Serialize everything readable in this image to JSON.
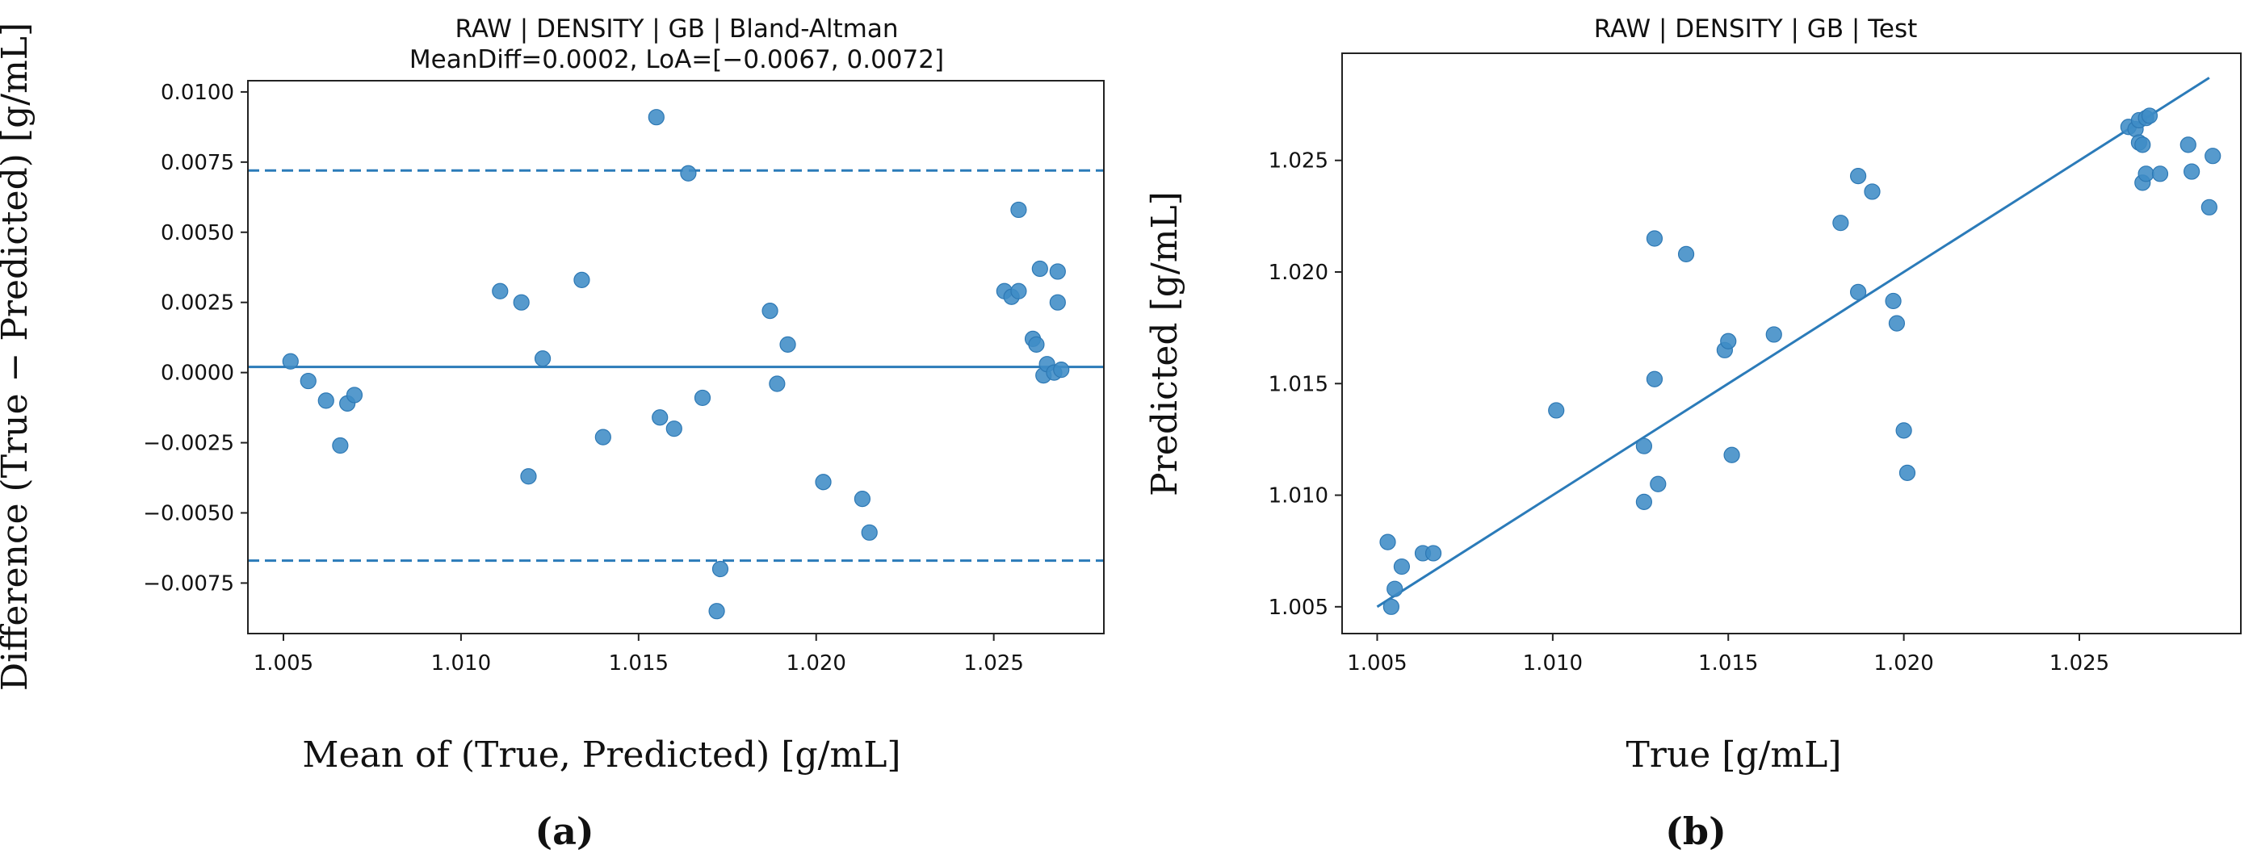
{
  "colors": {
    "point": "#3f8cc6",
    "point_edge": "#2d78b4",
    "line": "#2b7bb9",
    "axis": "#222222"
  },
  "chart_data": [
    {
      "id": "a",
      "type": "scatter",
      "title": "RAW | DENSITY | GB | Bland-Altman",
      "subtitle": "MeanDiff=0.0002, LoA=[−0.0067, 0.0072]",
      "xlabel": "Mean of (True, Predicted) [g/mL]",
      "ylabel": "Difference (True − Predicted) [g/mL]",
      "panel_label": "(a)",
      "xlim": [
        1.004,
        1.0281
      ],
      "ylim": [
        -0.0093,
        0.0104
      ],
      "xticks": [
        1.005,
        1.01,
        1.015,
        1.02,
        1.025
      ],
      "xtick_labels": [
        "1.005",
        "1.010",
        "1.015",
        "1.020",
        "1.025"
      ],
      "yticks": [
        0.01,
        0.0075,
        0.005,
        0.0025,
        0.0,
        -0.0025,
        -0.005,
        -0.0075
      ],
      "ytick_labels": [
        "0.0100",
        "0.0075",
        "0.0050",
        "0.0025",
        "0.0000",
        "−0.0025",
        "−0.0050",
        "−0.0075"
      ],
      "hlines": [
        {
          "y": 0.0072,
          "style": "dashed",
          "label": "Upper LoA"
        },
        {
          "y": 0.0002,
          "style": "solid",
          "label": "Mean difference"
        },
        {
          "y": -0.0067,
          "style": "dashed",
          "label": "Lower LoA"
        }
      ],
      "points": {
        "x": [
          1.0052,
          1.0057,
          1.0062,
          1.0066,
          1.0068,
          1.007,
          1.0111,
          1.0117,
          1.0119,
          1.0123,
          1.0134,
          1.014,
          1.0155,
          1.0156,
          1.016,
          1.0164,
          1.0168,
          1.0172,
          1.0173,
          1.0187,
          1.0189,
          1.0192,
          1.0202,
          1.0213,
          1.0215,
          1.0253,
          1.0255,
          1.0257,
          1.0257,
          1.0261,
          1.0262,
          1.0263,
          1.0264,
          1.0265,
          1.0267,
          1.0268,
          1.0268,
          1.0269
        ],
        "y": [
          0.0004,
          -0.0003,
          -0.001,
          -0.0026,
          -0.0011,
          -0.0008,
          0.0029,
          0.0025,
          -0.0037,
          0.0005,
          0.0033,
          -0.0023,
          0.0091,
          -0.0016,
          -0.002,
          0.0071,
          -0.0009,
          -0.0085,
          -0.007,
          0.0022,
          -0.0004,
          0.001,
          -0.0039,
          -0.0045,
          -0.0057,
          0.0029,
          0.0027,
          0.0058,
          0.0029,
          0.0012,
          0.001,
          0.0037,
          -0.0001,
          0.0003,
          0.0,
          0.0025,
          0.0036,
          0.0001
        ]
      }
    },
    {
      "id": "b",
      "type": "scatter",
      "title": "RAW | DENSITY | GB | Test",
      "xlabel": "True [g/mL]",
      "ylabel": "Predicted [g/mL]",
      "panel_label": "(b)",
      "xlim": [
        1.004,
        1.0296
      ],
      "ylim": [
        1.0038,
        1.0298
      ],
      "xticks": [
        1.005,
        1.01,
        1.015,
        1.02,
        1.025
      ],
      "xtick_labels": [
        "1.005",
        "1.010",
        "1.015",
        "1.020",
        "1.025"
      ],
      "yticks": [
        1.025,
        1.02,
        1.015,
        1.01,
        1.005
      ],
      "ytick_labels": [
        "1.025",
        "1.020",
        "1.015",
        "1.010",
        "1.005"
      ],
      "line": {
        "x": [
          1.005,
          1.0287
        ],
        "y": [
          1.005,
          1.0287
        ],
        "label": "identity"
      },
      "points": {
        "x": [
          1.0053,
          1.0054,
          1.0055,
          1.0057,
          1.0063,
          1.0066,
          1.0101,
          1.0126,
          1.0126,
          1.0129,
          1.0129,
          1.013,
          1.0138,
          1.0149,
          1.015,
          1.0151,
          1.0163,
          1.0182,
          1.0187,
          1.0187,
          1.0191,
          1.0197,
          1.0198,
          1.02,
          1.0201,
          1.0264,
          1.0266,
          1.0267,
          1.0267,
          1.0268,
          1.0268,
          1.0269,
          1.0269,
          1.027,
          1.0273,
          1.0281,
          1.0282,
          1.0287,
          1.0288
        ],
        "y": [
          1.0079,
          1.005,
          1.0058,
          1.0068,
          1.0074,
          1.0074,
          1.0138,
          1.0122,
          1.0097,
          1.0152,
          1.0215,
          1.0105,
          1.0208,
          1.0165,
          1.0169,
          1.0118,
          1.0172,
          1.0222,
          1.0191,
          1.0243,
          1.0236,
          1.0187,
          1.0177,
          1.0129,
          1.011,
          1.0265,
          1.0264,
          1.0268,
          1.0258,
          1.024,
          1.0257,
          1.0269,
          1.0244,
          1.027,
          1.0244,
          1.0257,
          1.0245,
          1.0229,
          1.0252
        ]
      }
    }
  ]
}
